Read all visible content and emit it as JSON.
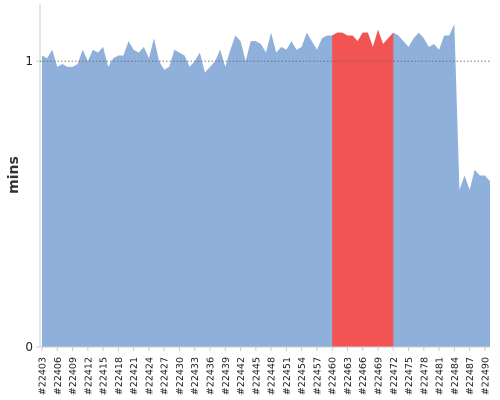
{
  "chart_data": {
    "type": "area",
    "ylabel": "mins",
    "xlabel": "",
    "ylim": [
      0,
      1.2
    ],
    "y_ticks": [
      0,
      1
    ],
    "y_tick_labels": [
      "0",
      "1"
    ],
    "reference_line": {
      "y": 1,
      "style": "dotted"
    },
    "x_tick_labels": [
      "#22403",
      "#22406",
      "#22409",
      "#22412",
      "#22415",
      "#22418",
      "#22421",
      "#22424",
      "#22427",
      "#22430",
      "#22433",
      "#22436",
      "#22439",
      "#22442",
      "#22445",
      "#22448",
      "#22451",
      "#22454",
      "#22457",
      "#22460",
      "#22463",
      "#22466",
      "#22469",
      "#22472",
      "#22475",
      "#22478",
      "#22481",
      "#22484",
      "#22487",
      "#22490"
    ],
    "x": [
      22403,
      22404,
      22405,
      22406,
      22407,
      22408,
      22409,
      22410,
      22411,
      22412,
      22413,
      22414,
      22415,
      22416,
      22417,
      22418,
      22419,
      22420,
      22421,
      22422,
      22423,
      22424,
      22425,
      22426,
      22427,
      22428,
      22429,
      22430,
      22431,
      22432,
      22433,
      22434,
      22435,
      22436,
      22437,
      22438,
      22439,
      22440,
      22441,
      22442,
      22443,
      22444,
      22445,
      22446,
      22447,
      22448,
      22449,
      22450,
      22451,
      22452,
      22453,
      22454,
      22455,
      22456,
      22457,
      22458,
      22459,
      22460,
      22461,
      22462,
      22463,
      22464,
      22465,
      22466,
      22467,
      22468,
      22469,
      22470,
      22471,
      22472,
      22473,
      22474,
      22475,
      22476,
      22477,
      22478,
      22479,
      22480,
      22481,
      22482,
      22483,
      22484,
      22485,
      22486,
      22487,
      22488,
      22489,
      22490,
      22491
    ],
    "values": [
      1.02,
      1.01,
      1.04,
      0.98,
      0.99,
      0.98,
      0.98,
      0.99,
      1.04,
      1.0,
      1.04,
      1.03,
      1.05,
      0.98,
      1.01,
      1.02,
      1.02,
      1.07,
      1.04,
      1.03,
      1.05,
      1.01,
      1.08,
      1.0,
      0.97,
      0.98,
      1.04,
      1.03,
      1.02,
      0.98,
      1.0,
      1.03,
      0.96,
      0.98,
      1.0,
      1.04,
      0.98,
      1.04,
      1.09,
      1.07,
      1.0,
      1.07,
      1.07,
      1.06,
      1.03,
      1.1,
      1.03,
      1.05,
      1.04,
      1.07,
      1.04,
      1.05,
      1.1,
      1.07,
      1.04,
      1.08,
      1.09,
      1.09,
      1.1,
      1.1,
      1.09,
      1.09,
      1.07,
      1.1,
      1.1,
      1.05,
      1.11,
      1.06,
      1.08,
      1.1,
      1.09,
      1.07,
      1.05,
      1.08,
      1.1,
      1.08,
      1.05,
      1.06,
      1.04,
      1.09,
      1.09,
      1.13,
      0.55,
      0.6,
      0.55,
      0.62,
      0.6,
      0.6,
      0.58
    ],
    "highlight_range": [
      22460,
      22472
    ],
    "colors": {
      "area": "#8eb0da",
      "highlight": "#f25454",
      "axis": "#cccccc",
      "reference": "#666666"
    }
  }
}
